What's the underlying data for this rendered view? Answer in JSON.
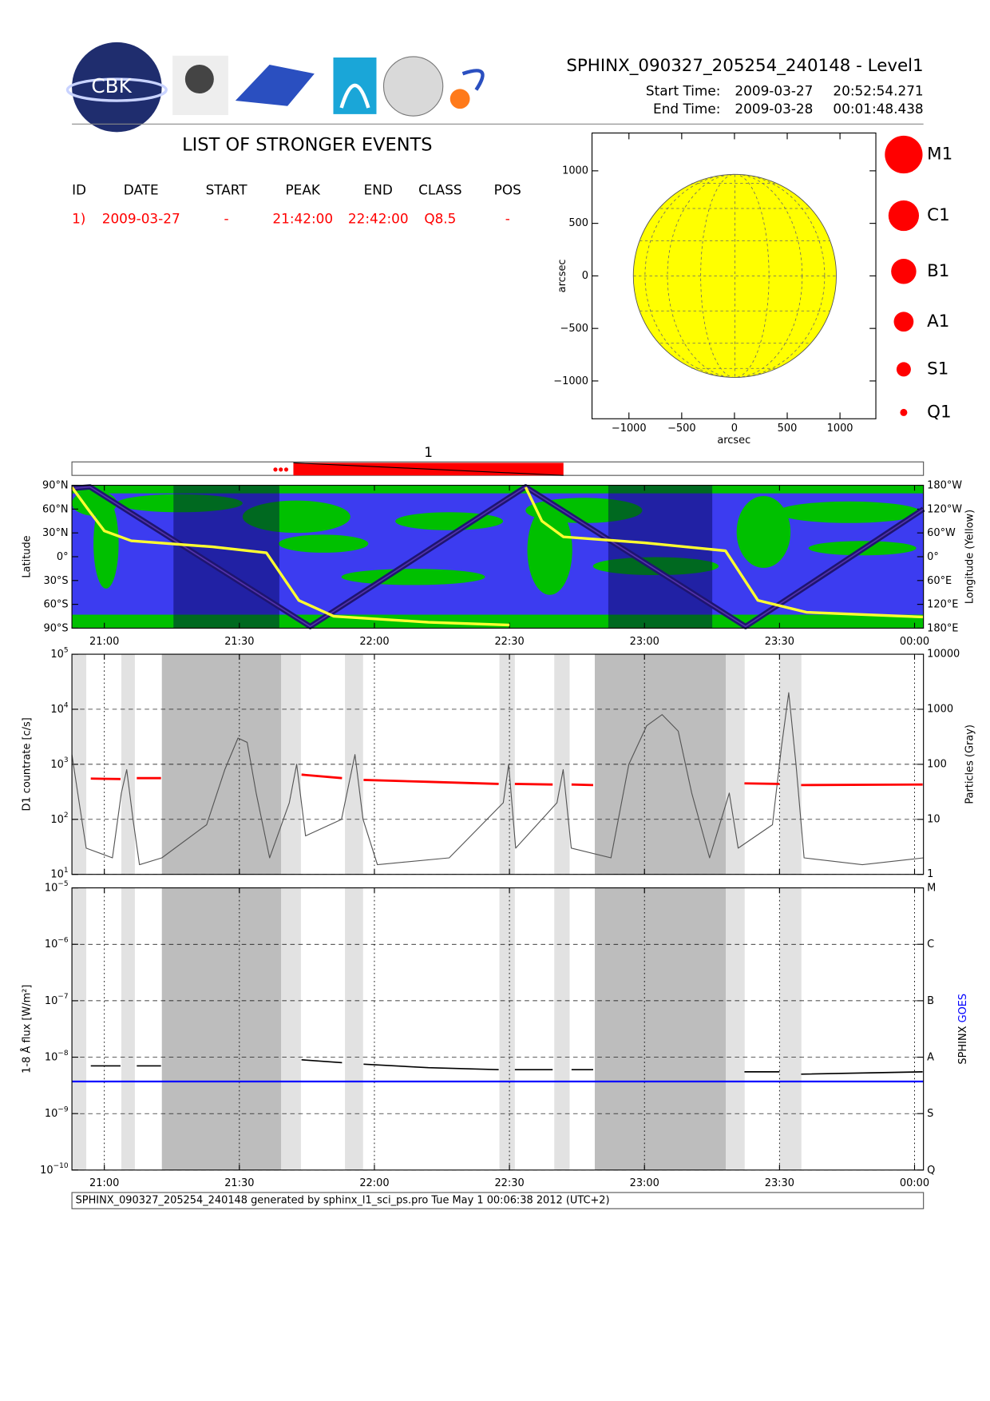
{
  "header": {
    "title": "SPHINX_090327_205254_240148 - Level1",
    "start_label": "Start Time:",
    "start_date": "2009-03-27",
    "start_time": "20:52:54.271",
    "end_label": "End Time:",
    "end_date": "2009-03-28",
    "end_time": "00:01:48.438",
    "logo_text": "CBK"
  },
  "events": {
    "title": "LIST OF STRONGER EVENTS",
    "columns": [
      "ID",
      "DATE",
      "START",
      "PEAK",
      "END",
      "CLASS",
      "POS"
    ],
    "rows": [
      [
        "1)",
        "2009-03-27",
        "-",
        "21:42:00",
        "22:42:00",
        "Q8.5",
        "-"
      ]
    ]
  },
  "class_legend": [
    "M1",
    "C1",
    "B1",
    "A1",
    "S1",
    "Q1"
  ],
  "footer": "SPHINX_090327_205254_240148 generated by sphinx_l1_sci_ps.pro Tue May  1 00:06:38 2012 (UTC+2)",
  "chart_data": [
    {
      "type": "disk",
      "xlabel": "arcsec",
      "ylabel": "arcsec",
      "xlim": [
        -1350,
        1340
      ],
      "ylim": [
        -1360,
        1360
      ],
      "xticks": [
        {
          "value": -1000,
          "label": "−1000"
        },
        {
          "value": -500,
          "label": "−500"
        },
        0,
        500,
        1000
      ],
      "yticks": [
        {
          "value": -1000,
          "label": "−1000"
        },
        {
          "value": -500,
          "label": "−500"
        },
        0,
        500,
        1000
      ]
    },
    {
      "type": "timeline",
      "label": "1",
      "xlim": [
        20.88,
        24.033
      ],
      "start": 21.7,
      "end": 22.7,
      "color": "#ff0000"
    },
    {
      "type": "line",
      "ylabel": "Latitude",
      "y2label": "Longitude (Yellow)",
      "xlim": [
        20.88,
        24.033
      ],
      "ylim": [
        -90,
        90
      ],
      "y2lim": [
        -180,
        180
      ],
      "xticks": [
        {
          "value": 21,
          "label": "21:00"
        },
        {
          "value": 21.5,
          "label": "21:30"
        },
        {
          "value": 22,
          "label": "22:00"
        },
        {
          "value": 22.5,
          "label": "22:30"
        },
        {
          "value": 23,
          "label": "23:00"
        },
        {
          "value": 23.5,
          "label": "23:30"
        },
        {
          "value": 24,
          "label": "00:00"
        }
      ],
      "yticks": [
        {
          "value": 90,
          "label": "90°N"
        },
        {
          "value": 60,
          "label": "60°N"
        },
        {
          "value": 30,
          "label": "30°N"
        },
        {
          "value": 0,
          "label": "0°"
        },
        {
          "value": -30,
          "label": "30°S"
        },
        {
          "value": -60,
          "label": "60°S"
        },
        {
          "value": -90,
          "label": "90°S"
        }
      ],
      "y2ticks": [
        {
          "value": 180,
          "label": "180°W"
        },
        {
          "value": 120,
          "label": "120°W"
        },
        {
          "value": 60,
          "label": "60°W"
        },
        {
          "value": 0,
          "label": "0°"
        },
        {
          "value": -60,
          "label": "60°E"
        },
        {
          "value": -120,
          "label": "120°E"
        },
        {
          "value": -180,
          "label": "180°E"
        }
      ],
      "bands": [
        {
          "start": 21.256,
          "end": 21.648,
          "shade": "dark"
        },
        {
          "start": 22.866,
          "end": 23.251,
          "shade": "dark"
        }
      ],
      "series": [
        {
          "color": "#1e1470",
          "x": [
            20.88,
            20.947,
            21.762,
            22.56,
            23.374,
            24.033
          ],
          "values": [
            86,
            88,
            -88,
            88,
            -88,
            60
          ]
        },
        {
          "color": "#ffff30",
          "axis": "y2",
          "x": [
            20.88,
            20.95,
            21.0,
            21.1,
            21.4,
            21.6,
            21.72,
            21.85,
            22.2,
            22.5,
            22.54,
            22.56,
            22.62,
            22.7,
            23.0,
            23.3,
            23.42,
            23.6,
            24.033
          ],
          "values": [
            175,
            110,
            65,
            40,
            25,
            10,
            -110,
            -150,
            -165,
            -172,
            null,
            175,
            90,
            50,
            35,
            15,
            -110,
            -140,
            -152
          ]
        }
      ]
    },
    {
      "type": "line",
      "log": true,
      "grid": true,
      "xgrid": true,
      "ylabel": "D1 countrate [c/s]",
      "y2label": "Particles (Gray)",
      "xlim": [
        20.88,
        24.033
      ],
      "ylim": [
        10,
        100000
      ],
      "y2lim": [
        1,
        10000
      ],
      "yticks": [
        {
          "value": 10,
          "label": "10",
          "sup": "1"
        },
        {
          "value": 100,
          "label": "10",
          "sup": "2"
        },
        {
          "value": 1000,
          "label": "10",
          "sup": "3"
        },
        {
          "value": 10000,
          "label": "10",
          "sup": "4"
        },
        {
          "value": 100000,
          "label": "10",
          "sup": "5"
        }
      ],
      "y2ticks": [
        1,
        10,
        100,
        1000,
        10000
      ],
      "bands": [
        {
          "start": 20.88,
          "end": 20.933,
          "shade": "light"
        },
        {
          "start": 21.063,
          "end": 21.113,
          "shade": "light"
        },
        {
          "start": 21.213,
          "end": 21.655,
          "shade": "dark"
        },
        {
          "start": 21.655,
          "end": 21.728,
          "shade": "light"
        },
        {
          "start": 21.891,
          "end": 21.958,
          "shade": "light"
        },
        {
          "start": 22.463,
          "end": 22.52,
          "shade": "light"
        },
        {
          "start": 22.666,
          "end": 22.723,
          "shade": "light"
        },
        {
          "start": 22.816,
          "end": 23.301,
          "shade": "dark"
        },
        {
          "start": 23.301,
          "end": 23.371,
          "shade": "light"
        },
        {
          "start": 23.501,
          "end": 23.581,
          "shade": "light"
        }
      ],
      "series": [
        {
          "color": "#555555",
          "axis": "y2",
          "x": [
            20.88,
            20.907,
            20.933,
            21.03,
            21.063,
            21.083,
            21.106,
            21.13,
            21.213,
            21.379,
            21.446,
            21.495,
            21.529,
            21.562,
            21.612,
            21.685,
            21.712,
            21.745,
            21.878,
            21.928,
            21.958,
            22.011,
            22.277,
            22.477,
            22.497,
            22.523,
            22.676,
            22.699,
            22.729,
            22.876,
            22.942,
            23.008,
            23.065,
            23.125,
            23.175,
            23.241,
            23.314,
            23.347,
            23.474,
            23.507,
            23.534,
            23.561,
            23.591,
            23.807,
            24.033
          ],
          "values": [
            150,
            20,
            3,
            2,
            30,
            80,
            10,
            1.5,
            2,
            8,
            80,
            300,
            250,
            30,
            2,
            20,
            100,
            5,
            10,
            150,
            10,
            1.5,
            2,
            20,
            100,
            3,
            20,
            80,
            3,
            2,
            100,
            500,
            800,
            400,
            30,
            2,
            30,
            3,
            8,
            200,
            2000,
            100,
            2,
            1.5,
            2
          ]
        },
        {
          "color": "#ff0000",
          "x": [
            20.95,
            21.06,
            21.08,
            21.12,
            21.21,
            21.4,
            21.73,
            21.88,
            21.92,
            21.96,
            22.2,
            22.46,
            22.49,
            22.52,
            22.66,
            22.69,
            22.73,
            22.81,
            23.0,
            23.37,
            23.5,
            23.54,
            23.58,
            24.03
          ],
          "values": [
            550,
            540,
            null,
            560,
            560,
            null,
            650,
            560,
            null,
            520,
            480,
            440,
            null,
            440,
            430,
            null,
            430,
            420,
            null,
            450,
            440,
            null,
            420,
            430
          ]
        }
      ]
    },
    {
      "type": "line",
      "log": true,
      "grid": true,
      "xgrid": true,
      "ylabel": "1-8 Å flux [W/m²]",
      "xlim": [
        20.88,
        24.033
      ],
      "ylim": [
        1e-10,
        1e-05
      ],
      "y2lim": [
        1e-10,
        1e-05
      ],
      "xticks": [
        {
          "value": 21,
          "label": "21:00"
        },
        {
          "value": 21.5,
          "label": "21:30"
        },
        {
          "value": 22,
          "label": "22:00"
        },
        {
          "value": 22.5,
          "label": "22:30"
        },
        {
          "value": 23,
          "label": "23:00"
        },
        {
          "value": 23.5,
          "label": "23:30"
        },
        {
          "value": 24,
          "label": "00:00"
        }
      ],
      "yticks": [
        {
          "value": 1e-10,
          "label": "10",
          "sup": "−10"
        },
        {
          "value": 1e-09,
          "label": "10",
          "sup": "−9"
        },
        {
          "value": 1e-08,
          "label": "10",
          "sup": "−8"
        },
        {
          "value": 1e-07,
          "label": "10",
          "sup": "−7"
        },
        {
          "value": 1e-06,
          "label": "10",
          "sup": "−6"
        },
        {
          "value": 1e-05,
          "label": "10",
          "sup": "−5"
        }
      ],
      "y2ticks": [
        {
          "value": 1e-10,
          "label": "Q"
        },
        {
          "value": 1e-09,
          "label": "S"
        },
        {
          "value": 1e-08,
          "label": "A"
        },
        {
          "value": 1e-07,
          "label": "B"
        },
        {
          "value": 1e-06,
          "label": "C"
        },
        {
          "value": 1e-05,
          "label": "M"
        }
      ],
      "bands": [
        {
          "start": 20.88,
          "end": 20.933,
          "shade": "light"
        },
        {
          "start": 21.063,
          "end": 21.113,
          "shade": "light"
        },
        {
          "start": 21.213,
          "end": 21.655,
          "shade": "dark"
        },
        {
          "start": 21.655,
          "end": 21.728,
          "shade": "light"
        },
        {
          "start": 21.891,
          "end": 21.958,
          "shade": "light"
        },
        {
          "start": 22.463,
          "end": 22.52,
          "shade": "light"
        },
        {
          "start": 22.666,
          "end": 22.723,
          "shade": "light"
        },
        {
          "start": 22.816,
          "end": 23.301,
          "shade": "dark"
        },
        {
          "start": 23.301,
          "end": 23.371,
          "shade": "light"
        },
        {
          "start": 23.501,
          "end": 23.581,
          "shade": "light"
        }
      ],
      "series": [
        {
          "name": "SPHINX",
          "color": "#000000",
          "x": [
            20.95,
            21.06,
            21.08,
            21.12,
            21.21,
            21.4,
            21.73,
            21.88,
            21.92,
            21.96,
            22.2,
            22.46,
            22.49,
            22.52,
            22.66,
            22.69,
            22.73,
            22.81,
            23.0,
            23.37,
            23.5,
            23.54,
            23.58,
            24.03
          ],
          "values": [
            7e-09,
            7e-09,
            null,
            7e-09,
            7e-09,
            null,
            9e-09,
            8e-09,
            null,
            7.5e-09,
            6.5e-09,
            6e-09,
            null,
            6e-09,
            6e-09,
            null,
            6e-09,
            6e-09,
            null,
            5.5e-09,
            5.5e-09,
            null,
            5e-09,
            5.5e-09
          ]
        },
        {
          "name": "GOES",
          "color": "#0000ff",
          "x": [
            20.88,
            24.033
          ],
          "values": [
            3.7e-09,
            3.7e-09
          ]
        }
      ]
    }
  ]
}
